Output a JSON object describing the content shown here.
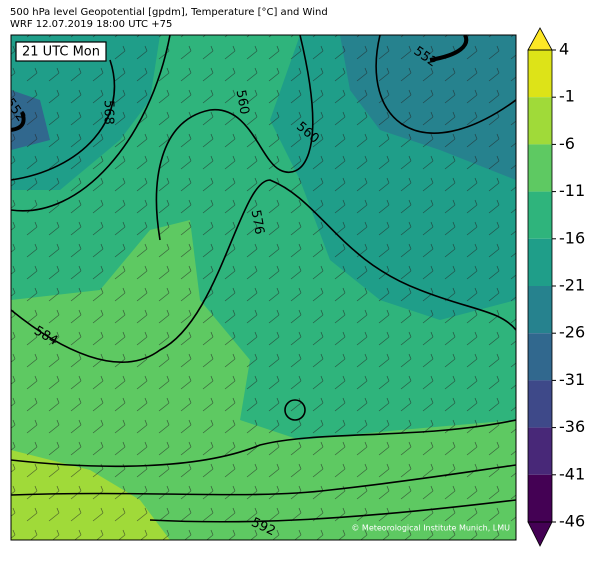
{
  "header": {
    "line1": "500 hPa level Geopotential [gpdm], Temperature [°C] and Wind",
    "line2": "WRF 12.07.2019 18:00 UTC +75"
  },
  "map": {
    "time_label": "21 UTC Mon",
    "contour_labels": [
      552,
      560,
      568,
      576,
      584,
      592,
      552,
      560
    ],
    "credit": "© Meteorological Institute Munich, LMU"
  },
  "colorbar": {
    "ticks": [
      4,
      -1,
      -6,
      -11,
      -16,
      -21,
      -26,
      -31,
      -36,
      -41,
      -46
    ],
    "colors": [
      "#dde318",
      "#a0da39",
      "#5ec962",
      "#2fb47c",
      "#1f9e89",
      "#26828e",
      "#31688e",
      "#3e4989",
      "#482878",
      "#440154"
    ],
    "over_color": "#fde725",
    "under_color": "#440154"
  }
}
